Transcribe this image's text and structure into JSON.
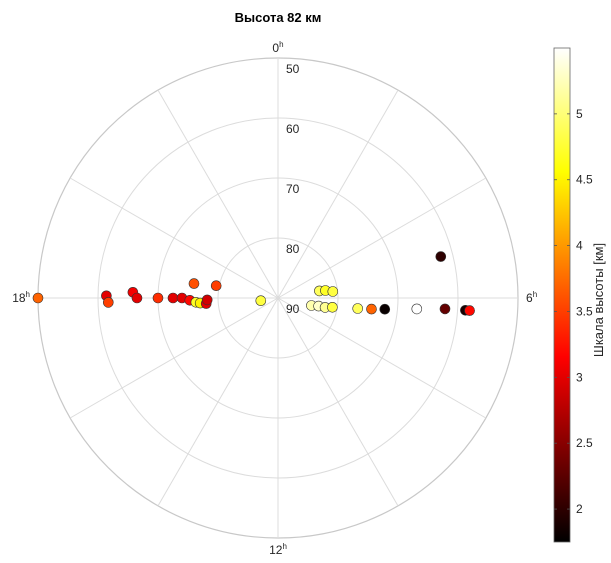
{
  "chart_data": {
    "type": "scatter",
    "subtype": "polar",
    "title": "Высота 82 км",
    "radial_axis": {
      "ticks": [
        "50",
        "60",
        "70",
        "80",
        "90"
      ],
      "range": [
        90,
        50
      ],
      "center_value": 90
    },
    "angular_axis": {
      "labels": [
        {
          "text": "0",
          "sup": "h",
          "angle_deg": 0
        },
        {
          "text": "6",
          "sup": "h",
          "angle_deg": 90
        },
        {
          "text": "12",
          "sup": "h",
          "angle_deg": 180
        },
        {
          "text": "18",
          "sup": "h",
          "angle_deg": 270
        }
      ],
      "direction": "clockwise",
      "grid_step_deg": 30
    },
    "grid": true,
    "colorbar": {
      "label": "Шкала высоты [км]",
      "ticks": [
        "2",
        "2.5",
        "3",
        "3.5",
        "4",
        "4.5",
        "5"
      ],
      "tick_values": [
        2,
        2.5,
        3,
        3.5,
        4,
        4.5,
        5
      ],
      "range": [
        1.75,
        5.5
      ],
      "colormap": "hot"
    },
    "points": [
      {
        "hour": 18.0,
        "elev": 50,
        "value": 3.7
      },
      {
        "hour": 18.05,
        "elev": 61.4,
        "value": 3.0
      },
      {
        "hour": 17.9,
        "elev": 61.7,
        "value": 3.5
      },
      {
        "hour": 18.15,
        "elev": 65.8,
        "value": 3.1
      },
      {
        "hour": 18.0,
        "elev": 66.5,
        "value": 3.0
      },
      {
        "hour": 18.0,
        "elev": 70.0,
        "value": 3.4
      },
      {
        "hour": 18.0,
        "elev": 72.5,
        "value": 3.0
      },
      {
        "hour": 18.0,
        "elev": 74.0,
        "value": 3.0
      },
      {
        "hour": 17.9,
        "elev": 75.3,
        "value": 3.2
      },
      {
        "hour": 17.8,
        "elev": 76.3,
        "value": 4.7
      },
      {
        "hour": 17.75,
        "elev": 77.0,
        "value": 4.5
      },
      {
        "hour": 17.7,
        "elev": 78.0,
        "value": 3.0
      },
      {
        "hour": 17.9,
        "elev": 78.2,
        "value": 2.9
      },
      {
        "hour": 18.65,
        "elev": 75.8,
        "value": 3.6
      },
      {
        "hour": 18.75,
        "elev": 79.5,
        "value": 3.5
      },
      {
        "hour": 17.4,
        "elev": 87.1,
        "value": 4.8
      },
      {
        "hour": 5.35,
        "elev": 83.0,
        "value": 4.9
      },
      {
        "hour": 5.4,
        "elev": 82.0,
        "value": 4.7
      },
      {
        "hour": 5.55,
        "elev": 80.8,
        "value": 4.8
      },
      {
        "hour": 6.85,
        "elev": 84.3,
        "value": 5.2
      },
      {
        "hour": 6.75,
        "elev": 83.1,
        "value": 5.3
      },
      {
        "hour": 6.75,
        "elev": 82.0,
        "value": 5.1
      },
      {
        "hour": 6.65,
        "elev": 80.8,
        "value": 4.8
      },
      {
        "hour": 6.5,
        "elev": 76.6,
        "value": 4.9
      },
      {
        "hour": 6.45,
        "elev": 74.3,
        "value": 3.7
      },
      {
        "hour": 6.4,
        "elev": 72.1,
        "value": 1.8
      },
      {
        "hour": 6.3,
        "elev": 66.8,
        "value": 5.5
      },
      {
        "hour": 5.05,
        "elev": 62.0,
        "value": 2.0
      },
      {
        "hour": 6.25,
        "elev": 62.1,
        "value": 2.3
      },
      {
        "hour": 6.25,
        "elev": 58.7,
        "value": 1.9
      },
      {
        "hour": 6.25,
        "elev": 58.0,
        "value": 3.2
      }
    ]
  }
}
